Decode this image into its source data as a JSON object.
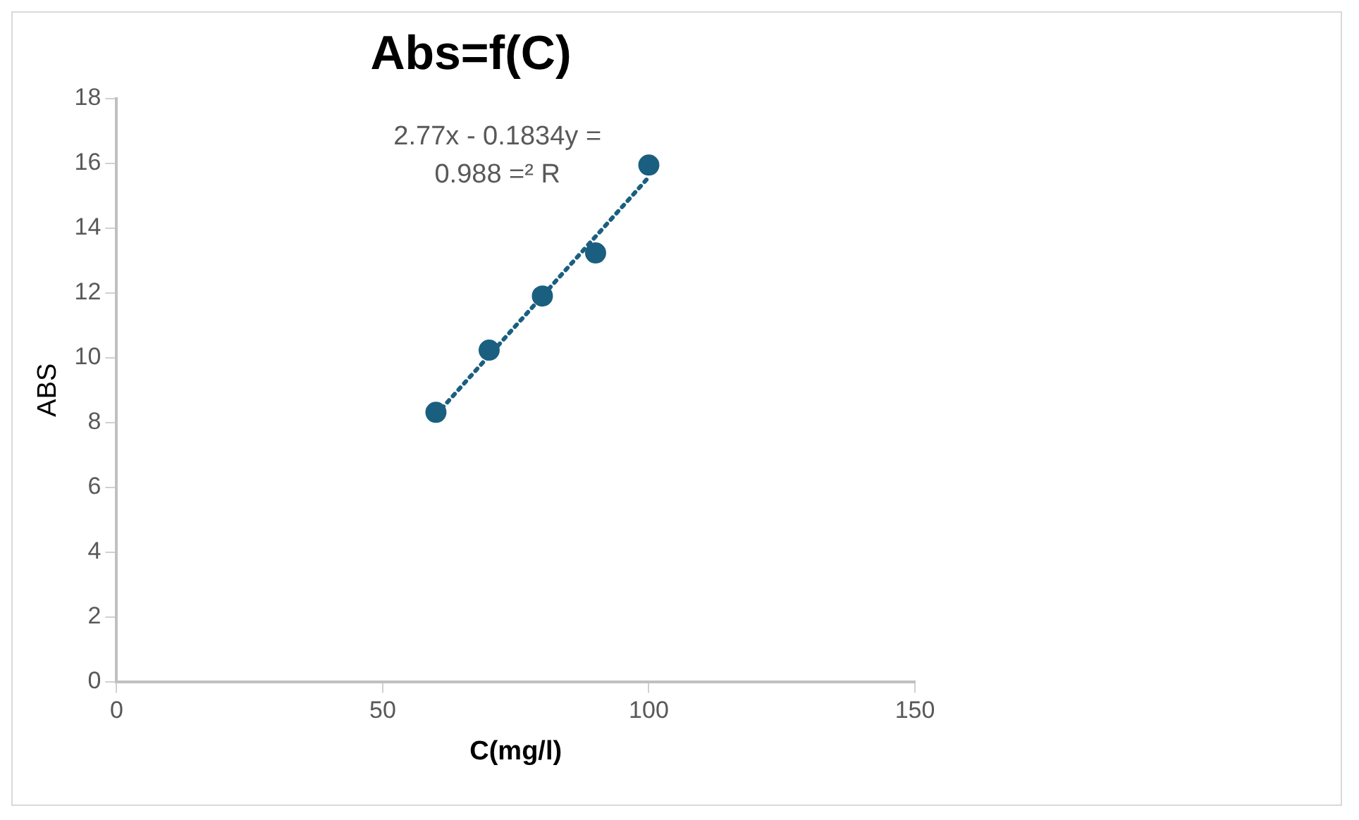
{
  "chart_data": {
    "type": "scatter",
    "title": "Abs=f(C)",
    "xlabel": "C(mg/l)",
    "ylabel": "ABS",
    "x": [
      60,
      70,
      80,
      90,
      100
    ],
    "series": [
      {
        "color": "#1b5f80",
        "values": [
          8.31,
          10.23,
          11.9,
          13.23,
          15.94
        ],
        "marker": "circle"
      },
      {
        "type": "line",
        "color": "#1b5f80",
        "x": [
          60,
          100
        ],
        "values": [
          8.23,
          15.57
        ],
        "line_style": "dotted",
        "marker": "none"
      }
    ],
    "annotations": [
      "2.77x - 0.1834y =",
      "0.988 =² R"
    ],
    "xlim": [
      0,
      150
    ],
    "xticks": [
      0,
      50,
      100,
      150
    ],
    "ylim": [
      0,
      18
    ],
    "yticks": [
      0,
      2,
      4,
      6,
      8,
      10,
      12,
      14,
      16,
      18
    ],
    "grid": false,
    "legend": false
  }
}
